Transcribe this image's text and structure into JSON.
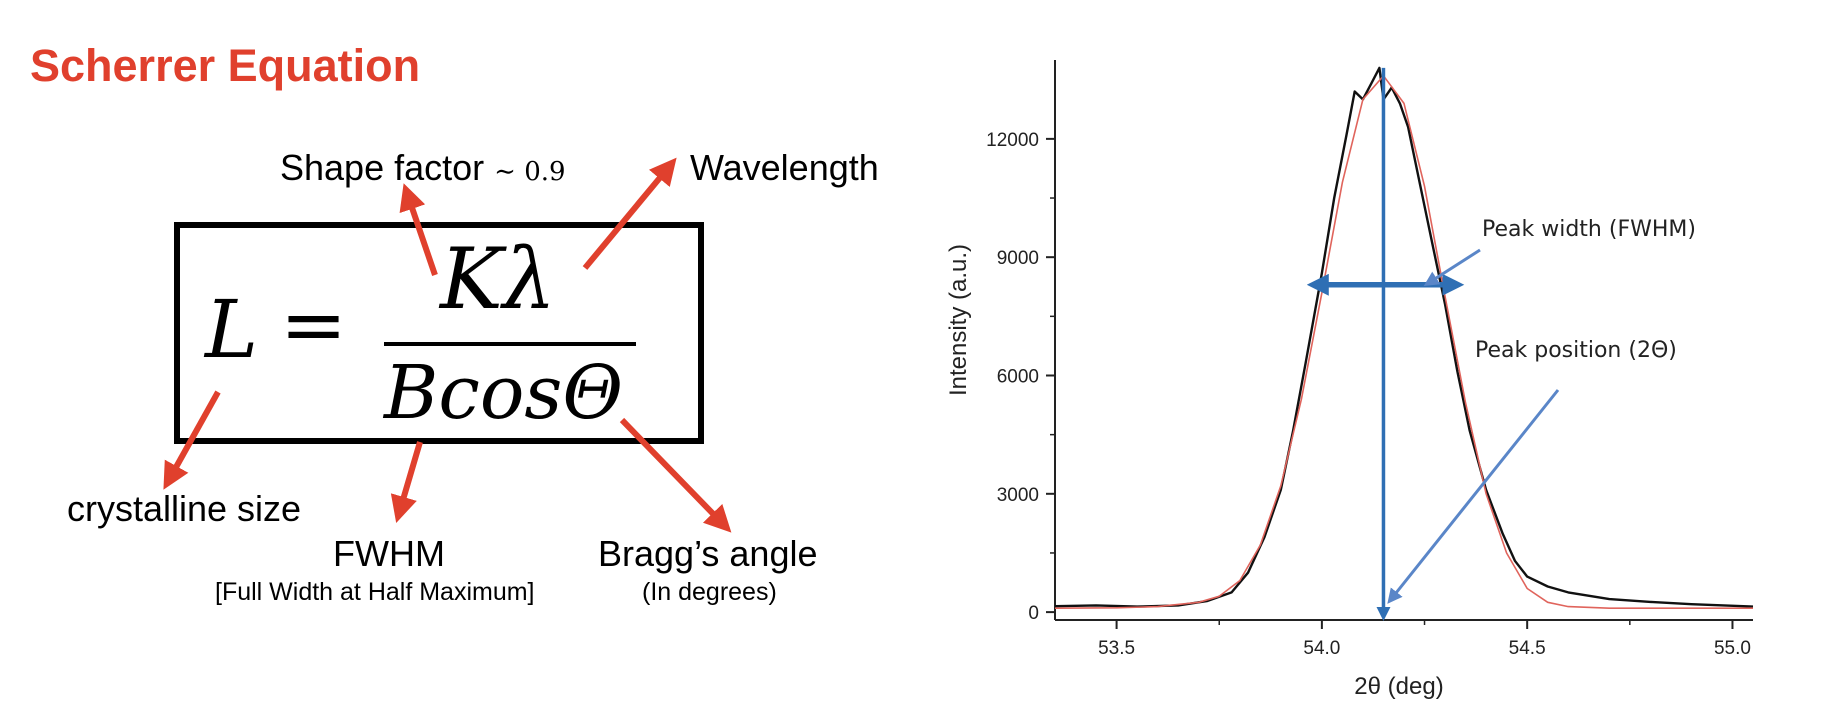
{
  "title": "Scherrer Equation",
  "equation": {
    "lhs": "L",
    "equals": "=",
    "numerator": "Kλ",
    "denominator": "BcosΘ"
  },
  "labels": {
    "shape_factor": "Shape factor",
    "shape_factor_value": "∼ 0.9",
    "wavelength": "Wavelength",
    "crystalline_size": "crystalline size",
    "fwhm": "FWHM",
    "fwhm_full": "[Full Width at Half Maximum]",
    "bragg_angle": "Bragg’s angle",
    "bragg_unit": "(In degrees)"
  },
  "colors": {
    "accent": "#e0402d",
    "arrow_blue": "#2f6fb4",
    "fit_red": "#e0645c",
    "data_black": "#111111"
  },
  "chart_data": {
    "type": "line",
    "xlabel": "2θ (deg)",
    "ylabel": "Intensity (a.u.)",
    "xlim": [
      53.35,
      55.05
    ],
    "ylim": [
      -200,
      14000
    ],
    "xticks": [
      53.5,
      54.0,
      54.5,
      55.0
    ],
    "xtick_labels": [
      "53.5",
      "54.0",
      "54.5",
      "55.0"
    ],
    "yticks": [
      0,
      3000,
      6000,
      9000,
      12000
    ],
    "ytick_labels": [
      "0",
      "3000",
      "6000",
      "9000",
      "12000"
    ],
    "series": [
      {
        "style": "measured (black)",
        "x": [
          53.35,
          53.45,
          53.55,
          53.65,
          53.72,
          53.78,
          53.82,
          53.86,
          53.9,
          53.93,
          53.96,
          54.0,
          54.03,
          54.06,
          54.08,
          54.1,
          54.12,
          54.14,
          54.15,
          54.17,
          54.19,
          54.21,
          54.24,
          54.27,
          54.3,
          54.33,
          54.36,
          54.4,
          54.44,
          54.47,
          54.5,
          54.55,
          54.6,
          54.7,
          54.8,
          54.9,
          55.05
        ],
        "y": [
          150,
          170,
          140,
          170,
          280,
          500,
          1000,
          1900,
          3100,
          4600,
          6300,
          8600,
          10500,
          12100,
          13200,
          13000,
          13400,
          13800,
          13000,
          13300,
          12900,
          12300,
          10800,
          9300,
          7800,
          6100,
          4600,
          3100,
          2000,
          1300,
          900,
          650,
          500,
          330,
          260,
          200,
          140
        ]
      },
      {
        "style": "Gaussian fit (red)",
        "x": [
          53.35,
          53.5,
          53.6,
          53.7,
          53.75,
          53.8,
          53.85,
          53.9,
          53.95,
          54.0,
          54.05,
          54.1,
          54.15,
          54.2,
          54.25,
          54.3,
          54.35,
          54.4,
          54.45,
          54.5,
          54.55,
          54.6,
          54.7,
          54.8,
          55.05
        ],
        "y": [
          100,
          110,
          140,
          250,
          400,
          800,
          1700,
          3200,
          5400,
          8100,
          10900,
          13000,
          13600,
          12900,
          10800,
          8000,
          5300,
          3000,
          1500,
          600,
          250,
          140,
          100,
          100,
          100
        ]
      }
    ],
    "annotations": {
      "peak_width": "Peak width (FWHM)",
      "peak_position": "Peak position (2Θ)",
      "fwhm_range": [
        53.99,
        54.32
      ],
      "fwhm_level": 8300,
      "peak_x": 54.15
    }
  }
}
